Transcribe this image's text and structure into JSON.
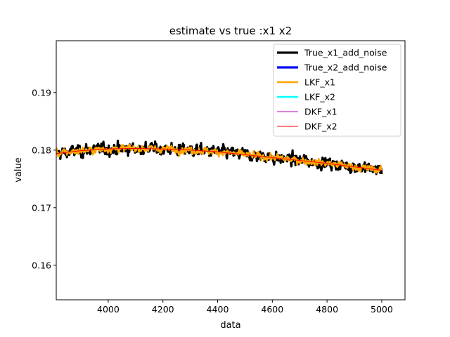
{
  "chart_data": {
    "type": "line",
    "title": "estimate vs true :x1 x2",
    "xlabel": "data",
    "ylabel": "value",
    "xlim": [
      3810,
      5085
    ],
    "ylim": [
      0.154,
      0.199
    ],
    "xticks": [
      4000,
      4200,
      4400,
      4600,
      4800,
      5000
    ],
    "yticks": [
      0.16,
      0.17,
      0.18,
      0.19
    ],
    "legend_position": "upper right",
    "grid": false,
    "colors": {
      "True_x1_add_noise": "#000000",
      "True_x2_add_noise": "#0000ff",
      "LKF_x1": "#ffa500",
      "LKF_x2": "#00ffff",
      "DKF_x1": "#bf00bf",
      "DKF_x2": "#ff0000"
    },
    "series": [
      {
        "name": "True_x1_add_noise",
        "trend_x": [
          3810,
          3900,
          4000,
          4100,
          4200,
          4300,
          4400,
          4500,
          4600,
          4700,
          4800,
          4900,
          5000
        ],
        "trend_y": [
          0.1794,
          0.1799,
          0.1802,
          0.1803,
          0.1802,
          0.18,
          0.1797,
          0.1792,
          0.1787,
          0.1782,
          0.1777,
          0.1771,
          0.1765
        ],
        "noise_std": 0.0012
      },
      {
        "name": "True_x2_add_noise",
        "x": [],
        "y": []
      },
      {
        "name": "LKF_x1",
        "trend_x": [
          3810,
          3900,
          4000,
          4100,
          4200,
          4300,
          4400,
          4500,
          4600,
          4700,
          4800,
          4900,
          5000
        ],
        "trend_y": [
          0.1794,
          0.1799,
          0.1802,
          0.1803,
          0.1802,
          0.18,
          0.1797,
          0.1792,
          0.1787,
          0.1782,
          0.1777,
          0.1771,
          0.1765
        ],
        "noise_std": 0.0007
      },
      {
        "name": "LKF_x2",
        "x": [],
        "y": []
      },
      {
        "name": "DKF_x1",
        "x": [],
        "y": []
      },
      {
        "name": "DKF_x2",
        "x": [
          3810,
          3900,
          4000,
          4100,
          4200,
          4300,
          4400,
          4500,
          4600,
          4700,
          4800,
          4900,
          5000
        ],
        "y": [
          0.1794,
          0.1799,
          0.1802,
          0.1803,
          0.1802,
          0.18,
          0.1797,
          0.1792,
          0.1787,
          0.1782,
          0.1777,
          0.1771,
          0.1765
        ]
      }
    ]
  }
}
